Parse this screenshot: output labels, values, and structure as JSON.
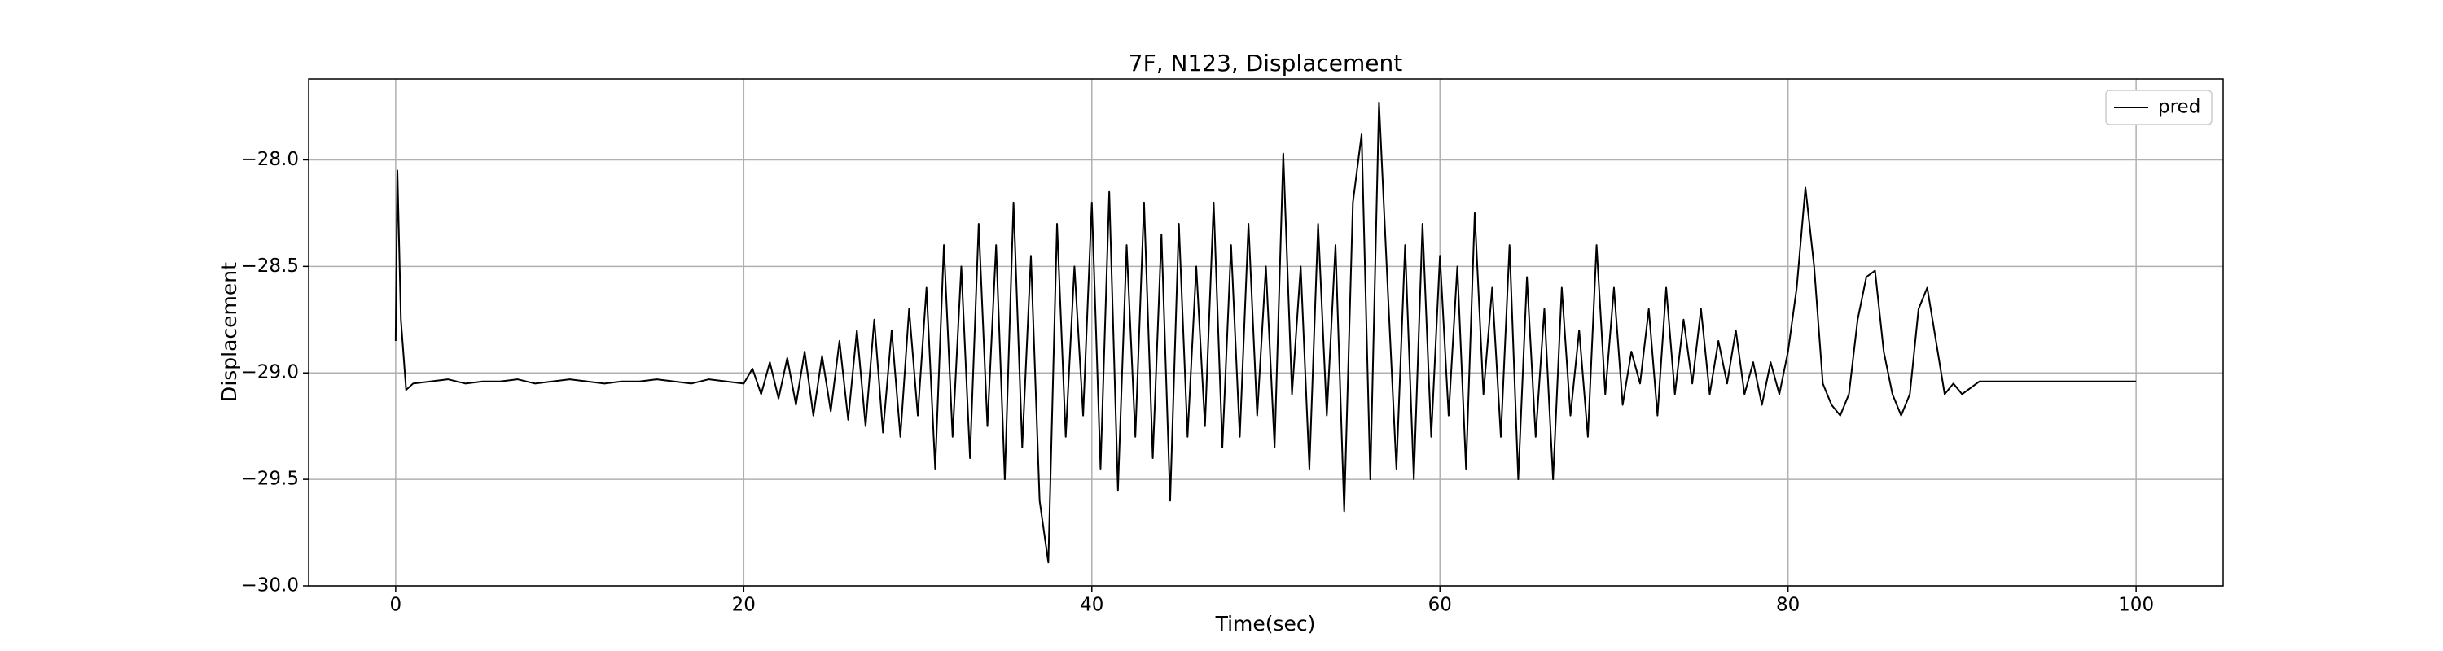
{
  "chart_data": {
    "type": "line",
    "title": "7F, N123, Displacement",
    "xlabel": "Time(sec)",
    "ylabel": "Displacement",
    "x": [
      0,
      0.1,
      0.3,
      0.6,
      1,
      2,
      3,
      4,
      5,
      6,
      7,
      8,
      9,
      10,
      11,
      12,
      13,
      14,
      15,
      16,
      17,
      18,
      19,
      20,
      20.5,
      21,
      21.5,
      22,
      22.5,
      23,
      23.5,
      24,
      24.5,
      25,
      25.5,
      26,
      26.5,
      27,
      27.5,
      28,
      28.5,
      29,
      29.5,
      30,
      30.5,
      31,
      31.5,
      32,
      32.5,
      33,
      33.5,
      34,
      34.5,
      35,
      35.5,
      36,
      36.5,
      37,
      37.5,
      38,
      38.5,
      39,
      39.5,
      40,
      40.5,
      41,
      41.5,
      42,
      42.5,
      43,
      43.5,
      44,
      44.5,
      45,
      45.5,
      46,
      46.5,
      47,
      47.5,
      48,
      48.5,
      49,
      49.5,
      50,
      50.5,
      51,
      51.5,
      52,
      52.5,
      53,
      53.5,
      54,
      54.5,
      55,
      55.5,
      56,
      56.5,
      57,
      57.5,
      58,
      58.5,
      59,
      59.5,
      60,
      60.5,
      61,
      61.5,
      62,
      62.5,
      63,
      63.5,
      64,
      64.5,
      65,
      65.5,
      66,
      66.5,
      67,
      67.5,
      68,
      68.5,
      69,
      69.5,
      70,
      70.5,
      71,
      71.5,
      72,
      72.5,
      73,
      73.5,
      74,
      74.5,
      75,
      75.5,
      76,
      76.5,
      77,
      77.5,
      78,
      78.5,
      79,
      79.5,
      80,
      80.5,
      81,
      81.5,
      82,
      82.5,
      83,
      83.5,
      84,
      84.5,
      85,
      85.5,
      86,
      86.5,
      87,
      87.5,
      88,
      88.5,
      89,
      89.5,
      90,
      91,
      92,
      93,
      94,
      95,
      96,
      97,
      98,
      99,
      100
    ],
    "series": [
      {
        "name": "pred",
        "color": "#000000",
        "values": [
          -28.85,
          -28.05,
          -28.75,
          -29.08,
          -29.05,
          -29.04,
          -29.03,
          -29.05,
          -29.04,
          -29.04,
          -29.03,
          -29.05,
          -29.04,
          -29.03,
          -29.04,
          -29.05,
          -29.04,
          -29.04,
          -29.03,
          -29.04,
          -29.05,
          -29.03,
          -29.04,
          -29.05,
          -28.98,
          -29.1,
          -28.95,
          -29.12,
          -28.93,
          -29.15,
          -28.9,
          -29.2,
          -28.92,
          -29.18,
          -28.85,
          -29.22,
          -28.8,
          -29.25,
          -28.75,
          -29.28,
          -28.8,
          -29.3,
          -28.7,
          -29.2,
          -28.6,
          -29.45,
          -28.4,
          -29.3,
          -28.5,
          -29.4,
          -28.3,
          -29.25,
          -28.4,
          -29.5,
          -28.2,
          -29.35,
          -28.45,
          -29.6,
          -29.89,
          -28.3,
          -29.3,
          -28.5,
          -29.2,
          -28.2,
          -29.45,
          -28.15,
          -29.55,
          -28.4,
          -29.3,
          -28.2,
          -29.4,
          -28.35,
          -29.6,
          -28.3,
          -29.3,
          -28.5,
          -29.25,
          -28.2,
          -29.35,
          -28.4,
          -29.3,
          -28.3,
          -29.2,
          -28.5,
          -29.35,
          -27.97,
          -29.1,
          -28.5,
          -29.45,
          -28.3,
          -29.2,
          -28.4,
          -29.65,
          -28.2,
          -27.88,
          -29.5,
          -27.73,
          -28.6,
          -29.45,
          -28.4,
          -29.5,
          -28.3,
          -29.3,
          -28.45,
          -29.2,
          -28.5,
          -29.45,
          -28.25,
          -29.1,
          -28.6,
          -29.3,
          -28.4,
          -29.5,
          -28.55,
          -29.3,
          -28.7,
          -29.5,
          -28.6,
          -29.2,
          -28.8,
          -29.3,
          -28.4,
          -29.1,
          -28.6,
          -29.15,
          -28.9,
          -29.05,
          -28.7,
          -29.2,
          -28.6,
          -29.1,
          -28.75,
          -29.05,
          -28.7,
          -29.1,
          -28.85,
          -29.05,
          -28.8,
          -29.1,
          -28.95,
          -29.15,
          -28.95,
          -29.1,
          -28.9,
          -28.6,
          -28.13,
          -28.5,
          -29.05,
          -29.15,
          -29.2,
          -29.1,
          -28.75,
          -28.55,
          -28.52,
          -28.9,
          -29.1,
          -29.2,
          -29.1,
          -28.7,
          -28.6,
          -28.85,
          -29.1,
          -29.05,
          -29.1,
          -29.04,
          -29.04,
          -29.04,
          -29.04,
          -29.04,
          -29.04,
          -29.04,
          -29.04,
          -29.04,
          -29.04
        ]
      }
    ],
    "xlim": [
      -5,
      105
    ],
    "ylim": [
      -30,
      -27.62
    ],
    "xticks": [
      0,
      20,
      40,
      60,
      80,
      100
    ],
    "yticks": [
      {
        "value": -30,
        "label": "−30.0"
      },
      {
        "value": -29.5,
        "label": "−29.5"
      },
      {
        "value": -29,
        "label": "−29.0"
      },
      {
        "value": -28.5,
        "label": "−28.5"
      },
      {
        "value": -28,
        "label": "−28.0"
      }
    ],
    "grid": true,
    "legend": "upper right"
  }
}
